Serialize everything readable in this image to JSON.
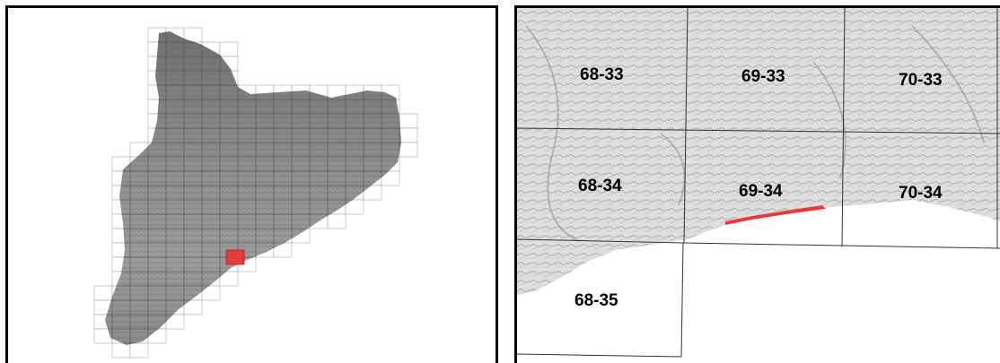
{
  "overview_map": {
    "highlight_color": "#e63b3b",
    "highlighted_tile": "69-34"
  },
  "detail_map": {
    "tiles": [
      {
        "id": "68-33",
        "label": "68-33"
      },
      {
        "id": "69-33",
        "label": "69-33"
      },
      {
        "id": "70-33",
        "label": "70-33"
      },
      {
        "id": "68-34",
        "label": "68-34"
      },
      {
        "id": "69-34",
        "label": "69-34"
      },
      {
        "id": "70-34",
        "label": "70-34"
      },
      {
        "id": "68-35",
        "label": "68-35"
      }
    ],
    "highlight_color": "#e63b3b"
  }
}
